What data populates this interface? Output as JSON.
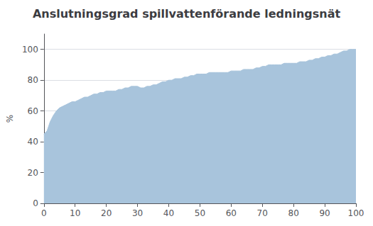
{
  "chart_data": {
    "type": "area",
    "title": "Anslutningsgrad spillvattenförande ledningsnät",
    "ylabel": "%",
    "color": "#a8c4dc",
    "grid": true,
    "xlim": [
      0,
      100
    ],
    "ylim": [
      0,
      110
    ],
    "xticks": [
      0,
      10,
      20,
      30,
      40,
      50,
      60,
      70,
      80,
      90,
      100
    ],
    "yticks": [
      0,
      20,
      40,
      60,
      80,
      100
    ],
    "x": [
      0,
      1,
      2,
      3,
      4,
      5,
      6,
      7,
      8,
      9,
      10,
      11,
      12,
      13,
      14,
      15,
      16,
      17,
      18,
      19,
      20,
      21,
      22,
      23,
      24,
      25,
      26,
      27,
      28,
      29,
      30,
      31,
      32,
      33,
      34,
      35,
      36,
      37,
      38,
      39,
      40,
      41,
      42,
      43,
      44,
      45,
      46,
      47,
      48,
      49,
      50,
      51,
      52,
      53,
      54,
      55,
      56,
      57,
      58,
      59,
      60,
      61,
      62,
      63,
      64,
      65,
      66,
      67,
      68,
      69,
      70,
      71,
      72,
      73,
      74,
      75,
      76,
      77,
      78,
      79,
      80,
      81,
      82,
      83,
      84,
      85,
      86,
      87,
      88,
      89,
      90,
      91,
      92,
      93,
      94,
      95,
      96,
      97,
      98,
      99,
      100
    ],
    "values": [
      45,
      47,
      53,
      57,
      60,
      62,
      63,
      64,
      65,
      66,
      66,
      67,
      68,
      69,
      69,
      70,
      71,
      71,
      72,
      72,
      73,
      73,
      73,
      73,
      74,
      74,
      75,
      75,
      76,
      76,
      76,
      75,
      75,
      76,
      76,
      77,
      77,
      78,
      79,
      79,
      80,
      80,
      81,
      81,
      81,
      82,
      82,
      83,
      83,
      84,
      84,
      84,
      84,
      85,
      85,
      85,
      85,
      85,
      85,
      85,
      86,
      86,
      86,
      86,
      87,
      87,
      87,
      87,
      88,
      88,
      89,
      89,
      90,
      90,
      90,
      90,
      90,
      91,
      91,
      91,
      91,
      91,
      92,
      92,
      92,
      93,
      93,
      94,
      94,
      95,
      95,
      96,
      96,
      97,
      97,
      98,
      99,
      99,
      100,
      100,
      100
    ]
  }
}
